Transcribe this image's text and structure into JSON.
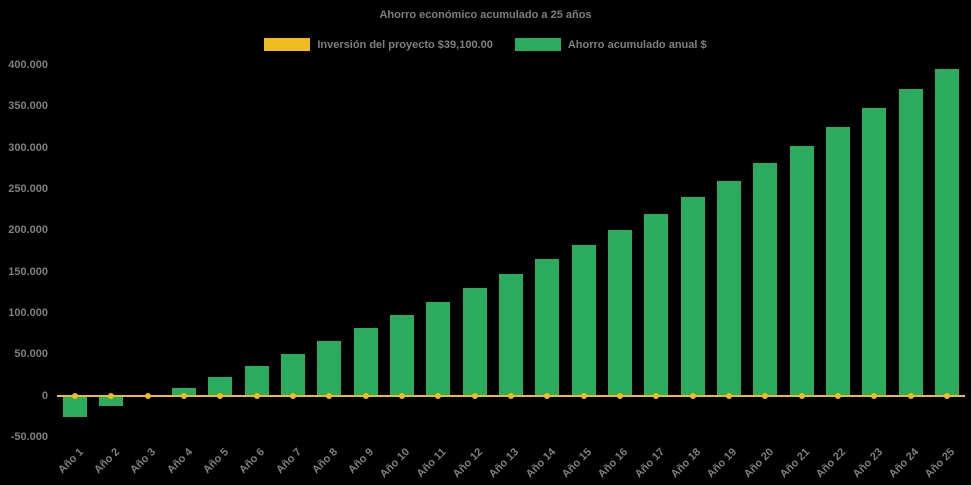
{
  "title": "Ahorro económico acumulado a 25 años",
  "legend": [
    {
      "label": "Inversión del proyecto $39,100.00",
      "color": "#f0bd1e",
      "type": "line"
    },
    {
      "label": "Ahorro acumulado anual $",
      "color": "#2aab5e",
      "type": "bar"
    }
  ],
  "colors": {
    "background": "#000000",
    "text": "#7f7f7f",
    "bar": "#2aab5e",
    "line": "#f0bd1e"
  },
  "chart_data": {
    "type": "bar",
    "title": "Ahorro económico acumulado a 25 años",
    "xlabel": "",
    "ylabel": "",
    "ylim": [
      -50000,
      400000
    ],
    "y_tick_step": 50000,
    "y_tick_labels": [
      "400.000",
      "350.000",
      "300.000",
      "250.000",
      "200.000",
      "150.000",
      "100.000",
      "50.000",
      "0",
      "-50.000"
    ],
    "grid": false,
    "legend_position": "top",
    "categories": [
      "Año 1",
      "Año 2",
      "Año 3",
      "Año 4",
      "Año 5",
      "Año 6",
      "Año 7",
      "Año 8",
      "Año 9",
      "Año 10",
      "Año 11",
      "Año 12",
      "Año 13",
      "Año 14",
      "Año 15",
      "Año 16",
      "Año 17",
      "Año 18",
      "Año 19",
      "Año 20",
      "Año 21",
      "Año 22",
      "Año 23",
      "Año 24",
      "Año 25"
    ],
    "series": [
      {
        "name": "Inversión del proyecto $39,100.00",
        "type": "line",
        "color": "#f0bd1e",
        "values": [
          0,
          0,
          0,
          0,
          0,
          0,
          0,
          0,
          0,
          0,
          0,
          0,
          0,
          0,
          0,
          0,
          0,
          0,
          0,
          0,
          0,
          0,
          0,
          0,
          0
        ]
      },
      {
        "name": "Ahorro acumulado anual $",
        "type": "bar",
        "color": "#2aab5e",
        "values": [
          -26000,
          -13000,
          -1500,
          9000,
          22000,
          36000,
          51000,
          66000,
          82000,
          97000,
          113000,
          130000,
          147000,
          165000,
          182000,
          201000,
          220000,
          240000,
          260000,
          281000,
          302000,
          325000,
          348000,
          371000,
          395000
        ]
      }
    ]
  }
}
